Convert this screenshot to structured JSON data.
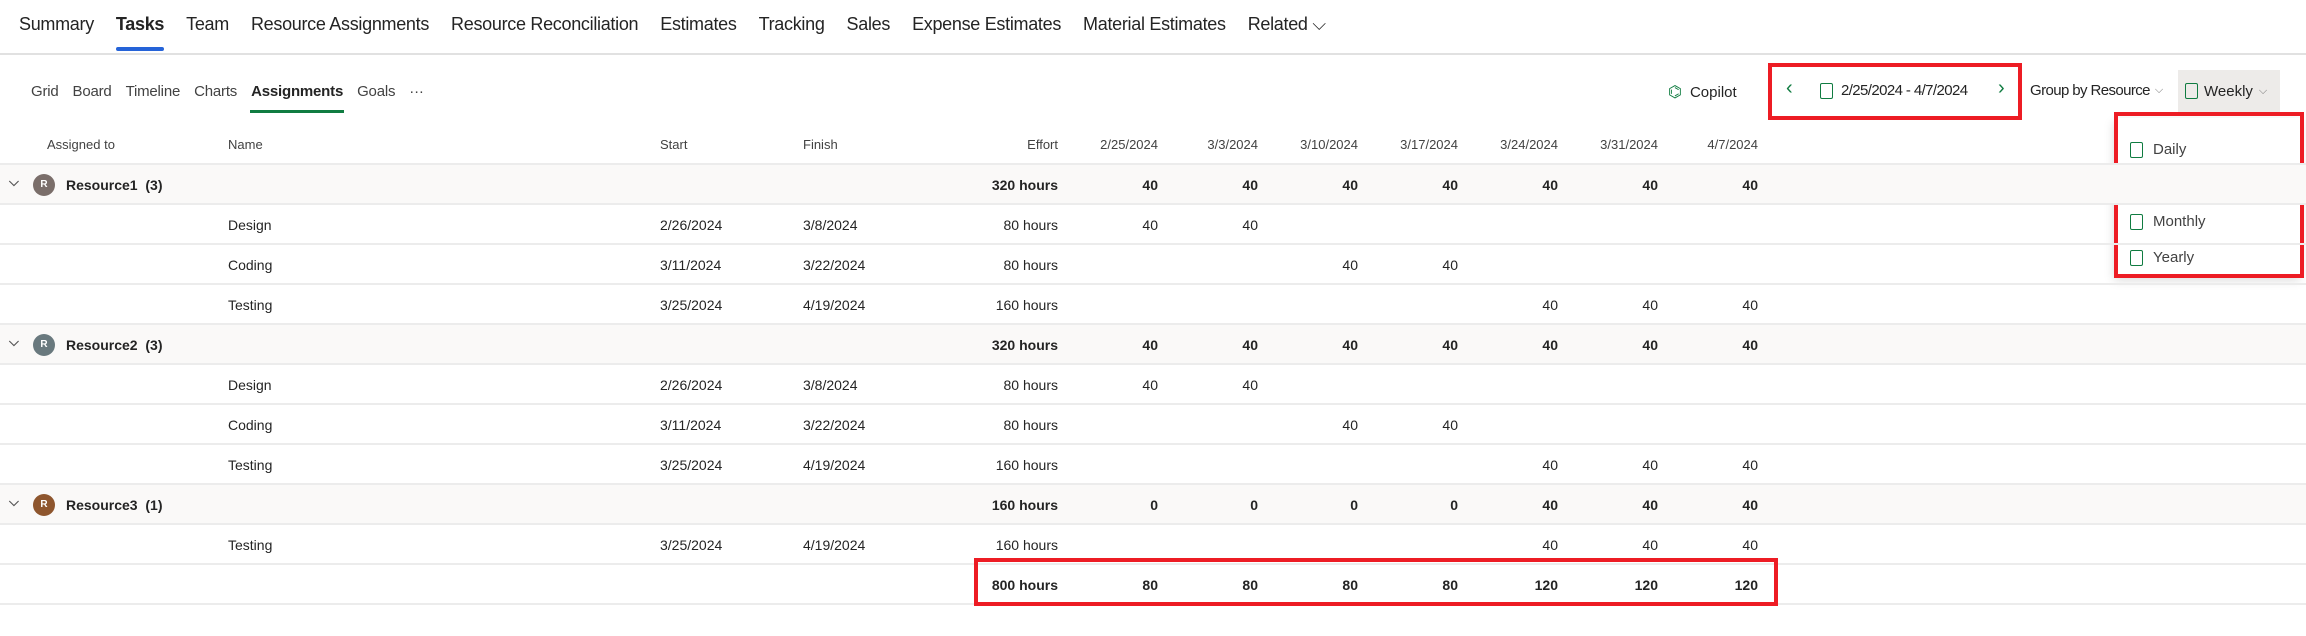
{
  "top_tabs": [
    {
      "label": "Summary"
    },
    {
      "label": "Tasks",
      "active": true
    },
    {
      "label": "Team"
    },
    {
      "label": "Resource Assignments"
    },
    {
      "label": "Resource Reconciliation"
    },
    {
      "label": "Estimates"
    },
    {
      "label": "Tracking"
    },
    {
      "label": "Sales"
    },
    {
      "label": "Expense Estimates"
    },
    {
      "label": "Material Estimates"
    },
    {
      "label": "Related ⌵"
    }
  ],
  "sub_tabs": [
    {
      "label": "Grid"
    },
    {
      "label": "Board"
    },
    {
      "label": "Timeline"
    },
    {
      "label": "Charts"
    },
    {
      "label": "Assignments",
      "active": true
    },
    {
      "label": "Goals"
    },
    {
      "label": "···"
    }
  ],
  "toolbar": {
    "copilot": "Copilot",
    "date_range": "2/25/2024 - 4/7/2024",
    "group_by": "Group by Resource",
    "timescale": "Weekly"
  },
  "timescale_menu": [
    {
      "label": "Daily",
      "icon": "daily-calendar-icon"
    },
    {
      "label": "Weekly",
      "icon": "weekly-calendar-icon"
    },
    {
      "label": "Monthly",
      "icon": "monthly-calendar-icon"
    },
    {
      "label": "Yearly",
      "icon": "yearly-calendar-icon"
    }
  ],
  "columns": {
    "assigned_to": "Assigned to",
    "name": "Name",
    "start": "Start",
    "finish": "Finish",
    "effort": "Effort",
    "weeks": [
      "2/25/2024",
      "3/3/2024",
      "3/10/2024",
      "3/17/2024",
      "3/24/2024",
      "3/31/2024",
      "4/7/2024"
    ]
  },
  "colors": {
    "accent": "#107c41",
    "tab_underline": "#2563d8",
    "highlight": "#ed1c24"
  },
  "rows": [
    {
      "type": "group",
      "resource": "Resource1",
      "count": "(3)",
      "avatar": "R",
      "avatar_color": "#7a6e6a",
      "effort": "320 hours",
      "weeks": [
        "40",
        "40",
        "40",
        "40",
        "40",
        "40",
        "40"
      ]
    },
    {
      "type": "task",
      "name": "Design",
      "start": "2/26/2024",
      "finish": "3/8/2024",
      "effort": "80 hours",
      "weeks": [
        "40",
        "40",
        "",
        "",
        "",
        "",
        ""
      ]
    },
    {
      "type": "task",
      "name": "Coding",
      "start": "3/11/2024",
      "finish": "3/22/2024",
      "effort": "80 hours",
      "weeks": [
        "",
        "",
        "40",
        "40",
        "",
        "",
        ""
      ]
    },
    {
      "type": "task",
      "name": "Testing",
      "start": "3/25/2024",
      "finish": "4/19/2024",
      "effort": "160 hours",
      "weeks": [
        "",
        "",
        "",
        "",
        "40",
        "40",
        "40"
      ]
    },
    {
      "type": "group",
      "resource": "Resource2",
      "count": "(3)",
      "avatar": "R",
      "avatar_color": "#69797e",
      "effort": "320 hours",
      "weeks": [
        "40",
        "40",
        "40",
        "40",
        "40",
        "40",
        "40"
      ]
    },
    {
      "type": "task",
      "name": "Design",
      "start": "2/26/2024",
      "finish": "3/8/2024",
      "effort": "80 hours",
      "weeks": [
        "40",
        "40",
        "",
        "",
        "",
        "",
        ""
      ]
    },
    {
      "type": "task",
      "name": "Coding",
      "start": "3/11/2024",
      "finish": "3/22/2024",
      "effort": "80 hours",
      "weeks": [
        "",
        "",
        "40",
        "40",
        "",
        "",
        ""
      ]
    },
    {
      "type": "task",
      "name": "Testing",
      "start": "3/25/2024",
      "finish": "4/19/2024",
      "effort": "160 hours",
      "weeks": [
        "",
        "",
        "",
        "",
        "40",
        "40",
        "40"
      ]
    },
    {
      "type": "group",
      "resource": "Resource3",
      "count": "(1)",
      "avatar": "R",
      "avatar_color": "#8e562e",
      "effort": "160 hours",
      "weeks": [
        "0",
        "0",
        "0",
        "0",
        "40",
        "40",
        "40"
      ]
    },
    {
      "type": "task",
      "name": "Testing",
      "start": "3/25/2024",
      "finish": "4/19/2024",
      "effort": "160 hours",
      "weeks": [
        "",
        "",
        "",
        "",
        "40",
        "40",
        "40"
      ]
    },
    {
      "type": "total",
      "effort": "800 hours",
      "weeks": [
        "80",
        "80",
        "80",
        "80",
        "120",
        "120",
        "120"
      ]
    }
  ]
}
